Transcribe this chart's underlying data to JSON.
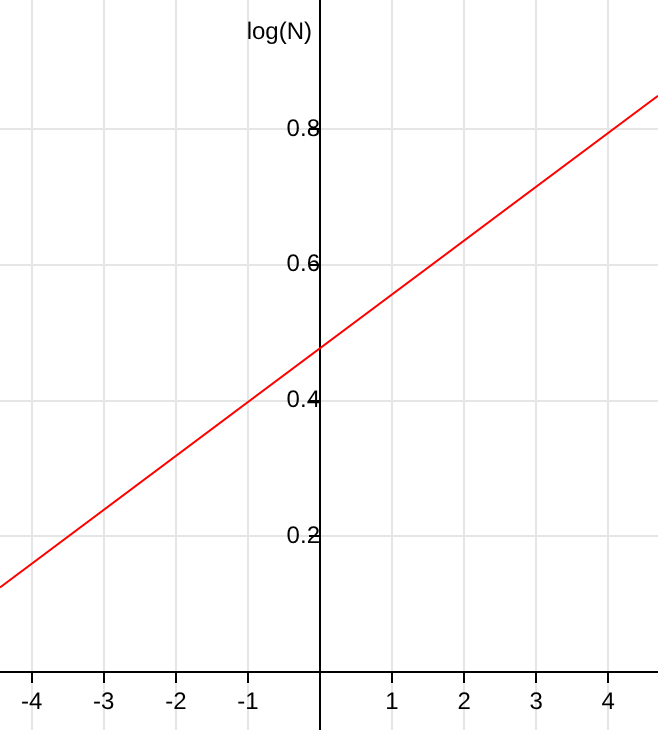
{
  "chart_data": {
    "type": "line",
    "ylabel": "log(N)",
    "xlim": [
      -4.44,
      4.69
    ],
    "ylim": [
      -0.085,
      0.99
    ],
    "xticks": [
      -4,
      -3,
      -2,
      -1,
      1,
      2,
      3,
      4
    ],
    "yticks": [
      0.2,
      0.4,
      0.6,
      0.8
    ],
    "grid": true,
    "marker": "none",
    "line_style": "solid",
    "series": [
      {
        "color": "#ff0000",
        "x": [
          -4.44,
          4.69
        ],
        "values": [
          0.125,
          0.849
        ]
      }
    ]
  }
}
